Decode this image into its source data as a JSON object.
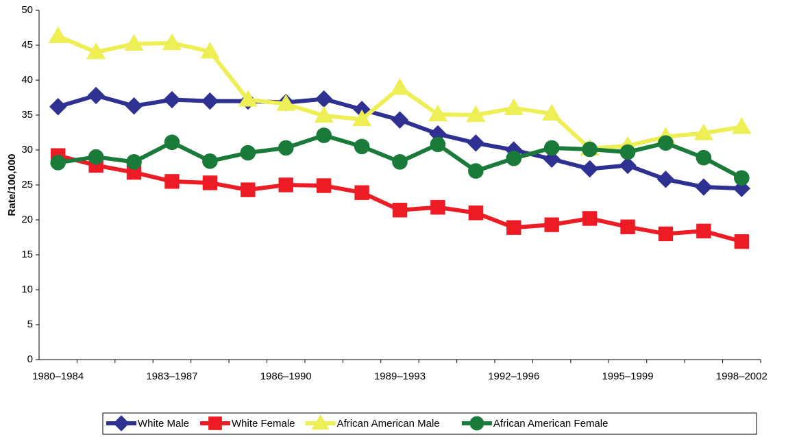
{
  "chart_data": {
    "type": "line",
    "y_label": "Rate/100,000",
    "categories": [
      "1980–1984",
      null,
      null,
      "1983–1987",
      null,
      null,
      "1986–1990",
      null,
      null,
      "1989–1993",
      null,
      null,
      "1992–1996",
      null,
      null,
      "1995–1999",
      null,
      null,
      "1998–2002"
    ],
    "ylim": [
      0,
      50
    ],
    "yticks": [
      0,
      5,
      10,
      15,
      20,
      25,
      30,
      35,
      40,
      45,
      50
    ],
    "grid": false,
    "legend": "bottom",
    "series": [
      {
        "name": "White Male",
        "color": "#2e3192",
        "marker": "diamond",
        "values": [
          36.2,
          37.8,
          36.3,
          37.2,
          37.0,
          37.0,
          36.8,
          37.3,
          35.8,
          34.3,
          32.3,
          31.0,
          30.0,
          28.7,
          27.3,
          27.8,
          25.8,
          24.7,
          24.5
        ]
      },
      {
        "name": "White Female",
        "color": "#ed1c24",
        "marker": "square",
        "values": [
          29.2,
          27.8,
          26.8,
          25.5,
          25.3,
          24.3,
          25.0,
          24.9,
          23.9,
          21.4,
          21.8,
          21.0,
          18.9,
          19.3,
          20.2,
          19.0,
          18.0,
          18.4,
          16.9
        ]
      },
      {
        "name": "African American Male",
        "color": "#eeee55",
        "marker": "triangle",
        "values": [
          46.3,
          44.0,
          45.2,
          45.3,
          44.1,
          37.2,
          36.6,
          34.9,
          34.4,
          38.9,
          35.1,
          35.0,
          36.0,
          35.2,
          30.2,
          30.6,
          31.9,
          32.4,
          33.3
        ]
      },
      {
        "name": "African American Female",
        "color": "#1a7a3a",
        "marker": "circle",
        "values": [
          28.2,
          29.0,
          28.3,
          31.1,
          28.4,
          29.6,
          30.3,
          32.1,
          30.5,
          28.3,
          30.8,
          27.0,
          28.8,
          30.3,
          30.1,
          29.7,
          31.0,
          28.9,
          26.0
        ]
      }
    ]
  }
}
